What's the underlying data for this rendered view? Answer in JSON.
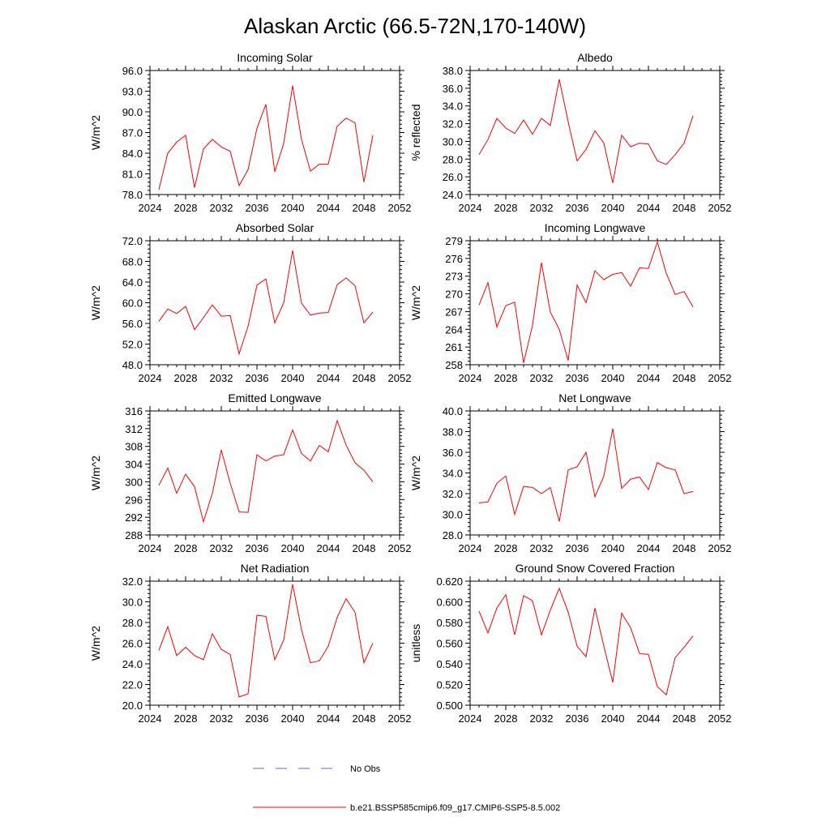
{
  "title": "Alaskan Arctic (66.5-72N,170-140W)",
  "legend": {
    "obs_label": "No Obs",
    "model_label": "b.e21.BSSP585cmip6.f09_g17.CMIP6-SSP5-8.5.002",
    "obs_color": "#5b6fd6",
    "model_color": "#ff0000"
  },
  "chart_data": [
    {
      "type": "line",
      "title": "Incoming Solar",
      "ylabel": "W/m^2",
      "xlim": [
        2024,
        2052
      ],
      "ylim": [
        78.0,
        96.0
      ],
      "xticks": [
        "2024",
        "2028",
        "2032",
        "2036",
        "2040",
        "2044",
        "2048",
        "2052"
      ],
      "yticks": [
        "78.0",
        "81.0",
        "84.0",
        "87.0",
        "90.0",
        "93.0",
        "96.0"
      ],
      "x": [
        2025,
        2026,
        2027,
        2028,
        2029,
        2030,
        2031,
        2032,
        2033,
        2034,
        2035,
        2036,
        2037,
        2038,
        2039,
        2040,
        2041,
        2042,
        2043,
        2044,
        2045,
        2046,
        2047,
        2048,
        2049
      ],
      "values": [
        78.7,
        84.0,
        85.6,
        86.6,
        79.0,
        84.6,
        86.0,
        84.9,
        84.3,
        79.3,
        81.6,
        87.6,
        91.1,
        81.3,
        85.4,
        93.8,
        86.0,
        81.4,
        82.4,
        82.4,
        87.9,
        89.1,
        88.4,
        79.8,
        86.6
      ],
      "color": "#ff0000"
    },
    {
      "type": "line",
      "title": "Albedo",
      "ylabel": "% reflected",
      "xlim": [
        2024,
        2052
      ],
      "ylim": [
        24.0,
        38.0
      ],
      "xticks": [
        "2024",
        "2028",
        "2032",
        "2036",
        "2040",
        "2044",
        "2048",
        "2052"
      ],
      "yticks": [
        "24.0",
        "26.0",
        "28.0",
        "30.0",
        "32.0",
        "34.0",
        "36.0",
        "38.0"
      ],
      "x": [
        2025,
        2026,
        2027,
        2028,
        2029,
        2030,
        2031,
        2032,
        2033,
        2034,
        2035,
        2036,
        2037,
        2038,
        2039,
        2040,
        2041,
        2042,
        2043,
        2044,
        2045,
        2046,
        2047,
        2048,
        2049
      ],
      "values": [
        28.5,
        30.2,
        32.6,
        31.5,
        30.9,
        32.4,
        30.8,
        32.6,
        31.8,
        37.0,
        32.2,
        27.8,
        29.1,
        31.2,
        29.8,
        25.3,
        30.7,
        29.4,
        29.8,
        29.7,
        27.8,
        27.4,
        28.5,
        29.8,
        32.9
      ],
      "color": "#ff0000"
    },
    {
      "type": "line",
      "title": "Absorbed Solar",
      "ylabel": "W/m^2",
      "xlim": [
        2024,
        2052
      ],
      "ylim": [
        48.0,
        72.0
      ],
      "xticks": [
        "2024",
        "2028",
        "2032",
        "2036",
        "2040",
        "2044",
        "2048",
        "2052"
      ],
      "yticks": [
        "48.0",
        "52.0",
        "56.0",
        "60.0",
        "64.0",
        "68.0",
        "72.0"
      ],
      "x": [
        2025,
        2026,
        2027,
        2028,
        2029,
        2030,
        2031,
        2032,
        2033,
        2034,
        2035,
        2036,
        2037,
        2038,
        2039,
        2040,
        2041,
        2042,
        2043,
        2044,
        2045,
        2046,
        2047,
        2048,
        2049
      ],
      "values": [
        56.4,
        58.8,
        57.9,
        59.3,
        54.8,
        57.1,
        59.6,
        57.4,
        57.5,
        50.1,
        55.4,
        63.4,
        64.6,
        56.1,
        60.0,
        70.1,
        59.9,
        57.6,
        58.0,
        58.1,
        63.5,
        64.8,
        63.3,
        56.1,
        58.2
      ],
      "color": "#ff0000"
    },
    {
      "type": "line",
      "title": "Incoming Longwave",
      "ylabel": "W/m^2",
      "xlim": [
        2024,
        2052
      ],
      "ylim": [
        258,
        279
      ],
      "xticks": [
        "2024",
        "2028",
        "2032",
        "2036",
        "2040",
        "2044",
        "2048",
        "2052"
      ],
      "yticks": [
        "258",
        "261",
        "264",
        "267",
        "270",
        "273",
        "276",
        "279"
      ],
      "x": [
        2025,
        2026,
        2027,
        2028,
        2029,
        2030,
        2031,
        2032,
        2033,
        2034,
        2035,
        2036,
        2037,
        2038,
        2039,
        2040,
        2041,
        2042,
        2043,
        2044,
        2045,
        2046,
        2047,
        2048,
        2049
      ],
      "values": [
        268.1,
        271.9,
        264.4,
        268.0,
        268.6,
        258.3,
        264.7,
        275.3,
        266.9,
        264.0,
        258.7,
        271.5,
        268.5,
        273.9,
        272.4,
        273.3,
        273.6,
        271.3,
        274.4,
        274.3,
        278.8,
        273.5,
        269.9,
        270.4,
        267.8
      ],
      "color": "#ff0000"
    },
    {
      "type": "line",
      "title": "Emitted Longwave",
      "ylabel": "W/m^2",
      "xlim": [
        2024,
        2052
      ],
      "ylim": [
        288,
        316
      ],
      "xticks": [
        "2024",
        "2028",
        "2032",
        "2036",
        "2040",
        "2044",
        "2048",
        "2052"
      ],
      "yticks": [
        "288",
        "292",
        "296",
        "300",
        "304",
        "308",
        "312",
        "316"
      ],
      "x": [
        2025,
        2026,
        2027,
        2028,
        2029,
        2030,
        2031,
        2032,
        2033,
        2034,
        2035,
        2036,
        2037,
        2038,
        2039,
        2040,
        2041,
        2042,
        2043,
        2044,
        2045,
        2046,
        2047,
        2048,
        2049
      ],
      "values": [
        299.2,
        303.1,
        297.4,
        301.7,
        298.9,
        291.0,
        297.4,
        307.2,
        299.7,
        293.2,
        293.1,
        306.1,
        304.7,
        305.8,
        306.1,
        311.7,
        306.4,
        304.7,
        308.2,
        306.8,
        313.8,
        308.3,
        304.3,
        302.6,
        300.0
      ],
      "color": "#ff0000"
    },
    {
      "type": "line",
      "title": "Net Longwave",
      "ylabel": "W/m^2",
      "xlim": [
        2024,
        2052
      ],
      "ylim": [
        28.0,
        40.0
      ],
      "xticks": [
        "2024",
        "2028",
        "2032",
        "2036",
        "2040",
        "2044",
        "2048",
        "2052"
      ],
      "yticks": [
        "28.0",
        "30.0",
        "32.0",
        "34.0",
        "36.0",
        "38.0",
        "40.0"
      ],
      "x": [
        2025,
        2026,
        2027,
        2028,
        2029,
        2030,
        2031,
        2032,
        2033,
        2034,
        2035,
        2036,
        2037,
        2038,
        2039,
        2040,
        2041,
        2042,
        2043,
        2044,
        2045,
        2046,
        2047,
        2048,
        2049
      ],
      "values": [
        31.1,
        31.2,
        33.0,
        33.7,
        30.0,
        32.7,
        32.6,
        32.0,
        32.6,
        29.3,
        34.3,
        34.6,
        36.0,
        31.7,
        33.7,
        38.3,
        32.5,
        33.4,
        33.6,
        32.4,
        35.0,
        34.5,
        34.3,
        32.0,
        32.2
      ],
      "color": "#ff0000"
    },
    {
      "type": "line",
      "title": "Net Radiation",
      "ylabel": "W/m^2",
      "xlim": [
        2024,
        2052
      ],
      "ylim": [
        20.0,
        32.0
      ],
      "xticks": [
        "2024",
        "2028",
        "2032",
        "2036",
        "2040",
        "2044",
        "2048",
        "2052"
      ],
      "yticks": [
        "20.0",
        "22.0",
        "24.0",
        "26.0",
        "28.0",
        "30.0",
        "32.0"
      ],
      "x": [
        2025,
        2026,
        2027,
        2028,
        2029,
        2030,
        2031,
        2032,
        2033,
        2034,
        2035,
        2036,
        2037,
        2038,
        2039,
        2040,
        2041,
        2042,
        2043,
        2044,
        2045,
        2046,
        2047,
        2048,
        2049
      ],
      "values": [
        25.3,
        27.6,
        24.8,
        25.6,
        24.8,
        24.4,
        26.9,
        25.4,
        24.9,
        20.8,
        21.1,
        28.7,
        28.6,
        24.4,
        26.3,
        31.7,
        27.3,
        24.1,
        24.3,
        25.7,
        28.5,
        30.3,
        29.0,
        24.1,
        26.0
      ],
      "color": "#ff0000"
    },
    {
      "type": "line",
      "title": "Ground Snow Covered Fraction",
      "ylabel": "unitless",
      "xlim": [
        2024,
        2052
      ],
      "ylim": [
        0.5,
        0.62
      ],
      "xticks": [
        "2024",
        "2028",
        "2032",
        "2036",
        "2040",
        "2044",
        "2048",
        "2052"
      ],
      "yticks": [
        "0.500",
        "0.520",
        "0.540",
        "0.560",
        "0.580",
        "0.600",
        "0.620"
      ],
      "x": [
        2025,
        2026,
        2027,
        2028,
        2029,
        2030,
        2031,
        2032,
        2033,
        2034,
        2035,
        2036,
        2037,
        2038,
        2039,
        2040,
        2041,
        2042,
        2043,
        2044,
        2045,
        2046,
        2047,
        2048,
        2049
      ],
      "values": [
        0.591,
        0.57,
        0.594,
        0.607,
        0.568,
        0.606,
        0.601,
        0.568,
        0.592,
        0.613,
        0.59,
        0.557,
        0.547,
        0.594,
        0.557,
        0.522,
        0.589,
        0.575,
        0.55,
        0.549,
        0.518,
        0.51,
        0.546,
        0.556,
        0.567
      ],
      "color": "#ff0000"
    }
  ]
}
